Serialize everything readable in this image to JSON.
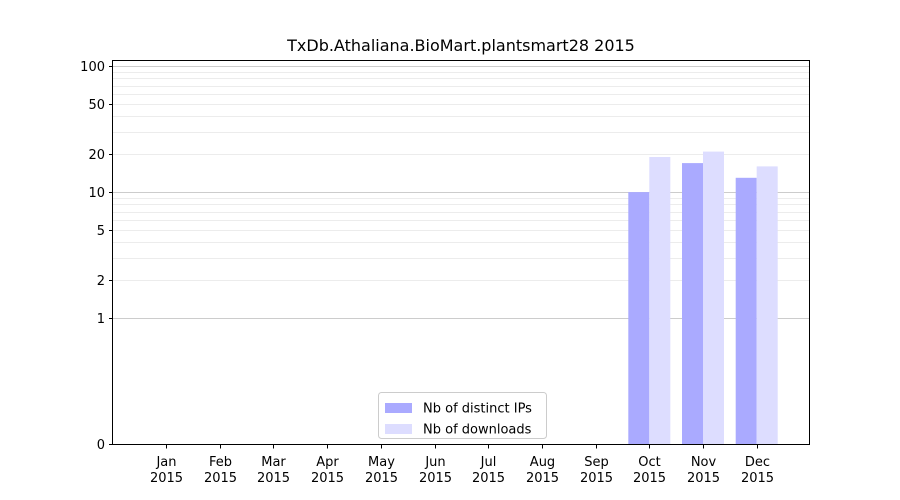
{
  "chart_data": {
    "type": "bar",
    "title": "TxDb.Athaliana.BioMart.plantsmart28 2015",
    "xlabel": "",
    "ylabel": "",
    "y_scale": "symlog",
    "ylim": [
      0,
      110
    ],
    "y_ticks": [
      0,
      1,
      2,
      5,
      10,
      20,
      50,
      100
    ],
    "grid": "horizontal",
    "legend_position": "lower-center",
    "categories": [
      {
        "month": "Jan",
        "year": "2015"
      },
      {
        "month": "Feb",
        "year": "2015"
      },
      {
        "month": "Mar",
        "year": "2015"
      },
      {
        "month": "Apr",
        "year": "2015"
      },
      {
        "month": "May",
        "year": "2015"
      },
      {
        "month": "Jun",
        "year": "2015"
      },
      {
        "month": "Jul",
        "year": "2015"
      },
      {
        "month": "Aug",
        "year": "2015"
      },
      {
        "month": "Sep",
        "year": "2015"
      },
      {
        "month": "Oct",
        "year": "2015"
      },
      {
        "month": "Nov",
        "year": "2015"
      },
      {
        "month": "Dec",
        "year": "2015"
      }
    ],
    "series": [
      {
        "name": "Nb of distinct IPs",
        "color": "#aaaaff",
        "values": [
          0,
          0,
          0,
          0,
          0,
          0,
          0,
          0,
          0,
          10,
          17,
          13
        ]
      },
      {
        "name": "Nb of downloads",
        "color": "#ddddff",
        "values": [
          0,
          0,
          0,
          0,
          0,
          0,
          0,
          0,
          0,
          19,
          21,
          16
        ]
      }
    ]
  }
}
